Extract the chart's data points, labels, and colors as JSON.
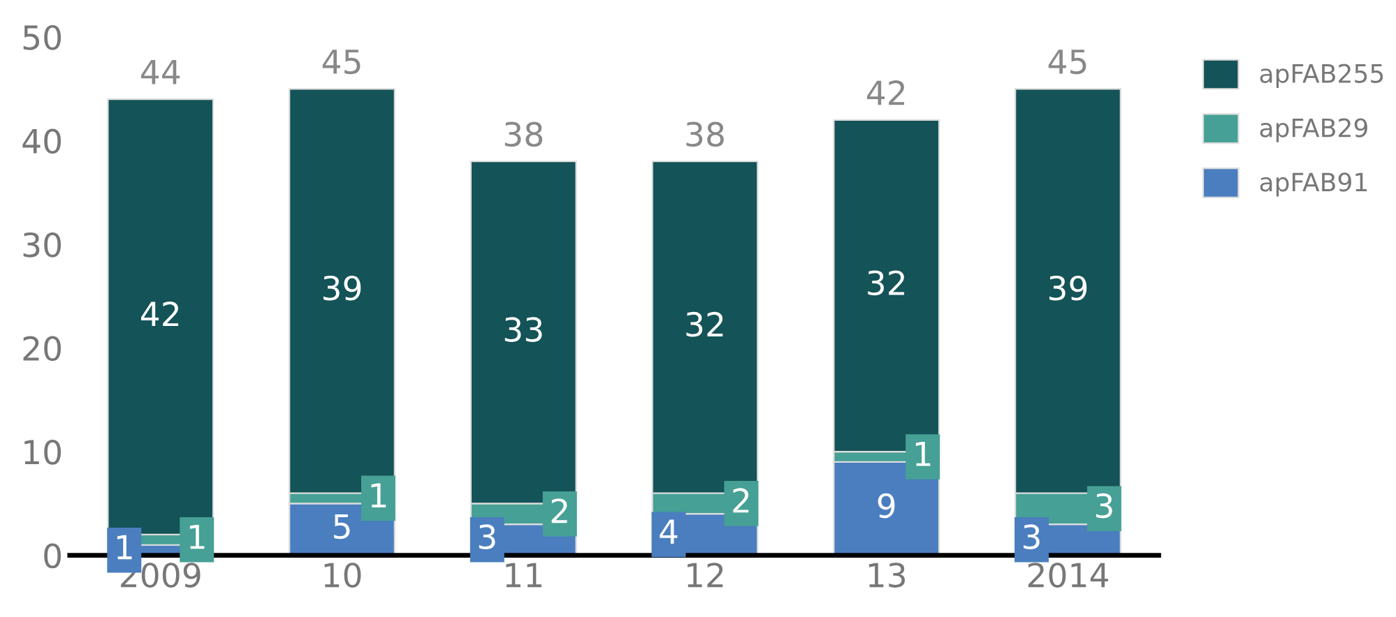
{
  "chart_data": {
    "type": "bar",
    "stacked": true,
    "categories": [
      "2009",
      "10",
      "11",
      "12",
      "13",
      "2014"
    ],
    "series": [
      {
        "name": "apFAB91",
        "color": "#4a7ebf",
        "values": [
          1,
          5,
          3,
          4,
          9,
          3
        ]
      },
      {
        "name": "apFAB29",
        "color": "#46a095",
        "values": [
          1,
          1,
          2,
          2,
          1,
          3
        ]
      },
      {
        "name": "apFAB255",
        "color": "#145357",
        "values": [
          42,
          39,
          33,
          32,
          32,
          39
        ]
      }
    ],
    "totals": [
      "44",
      "45",
      "38",
      "38",
      "42",
      "45"
    ],
    "data_labels": true,
    "ylim": [
      0,
      50
    ],
    "yticks": [
      0,
      10,
      20,
      30,
      40,
      50
    ],
    "grid": false,
    "legend": "right"
  }
}
